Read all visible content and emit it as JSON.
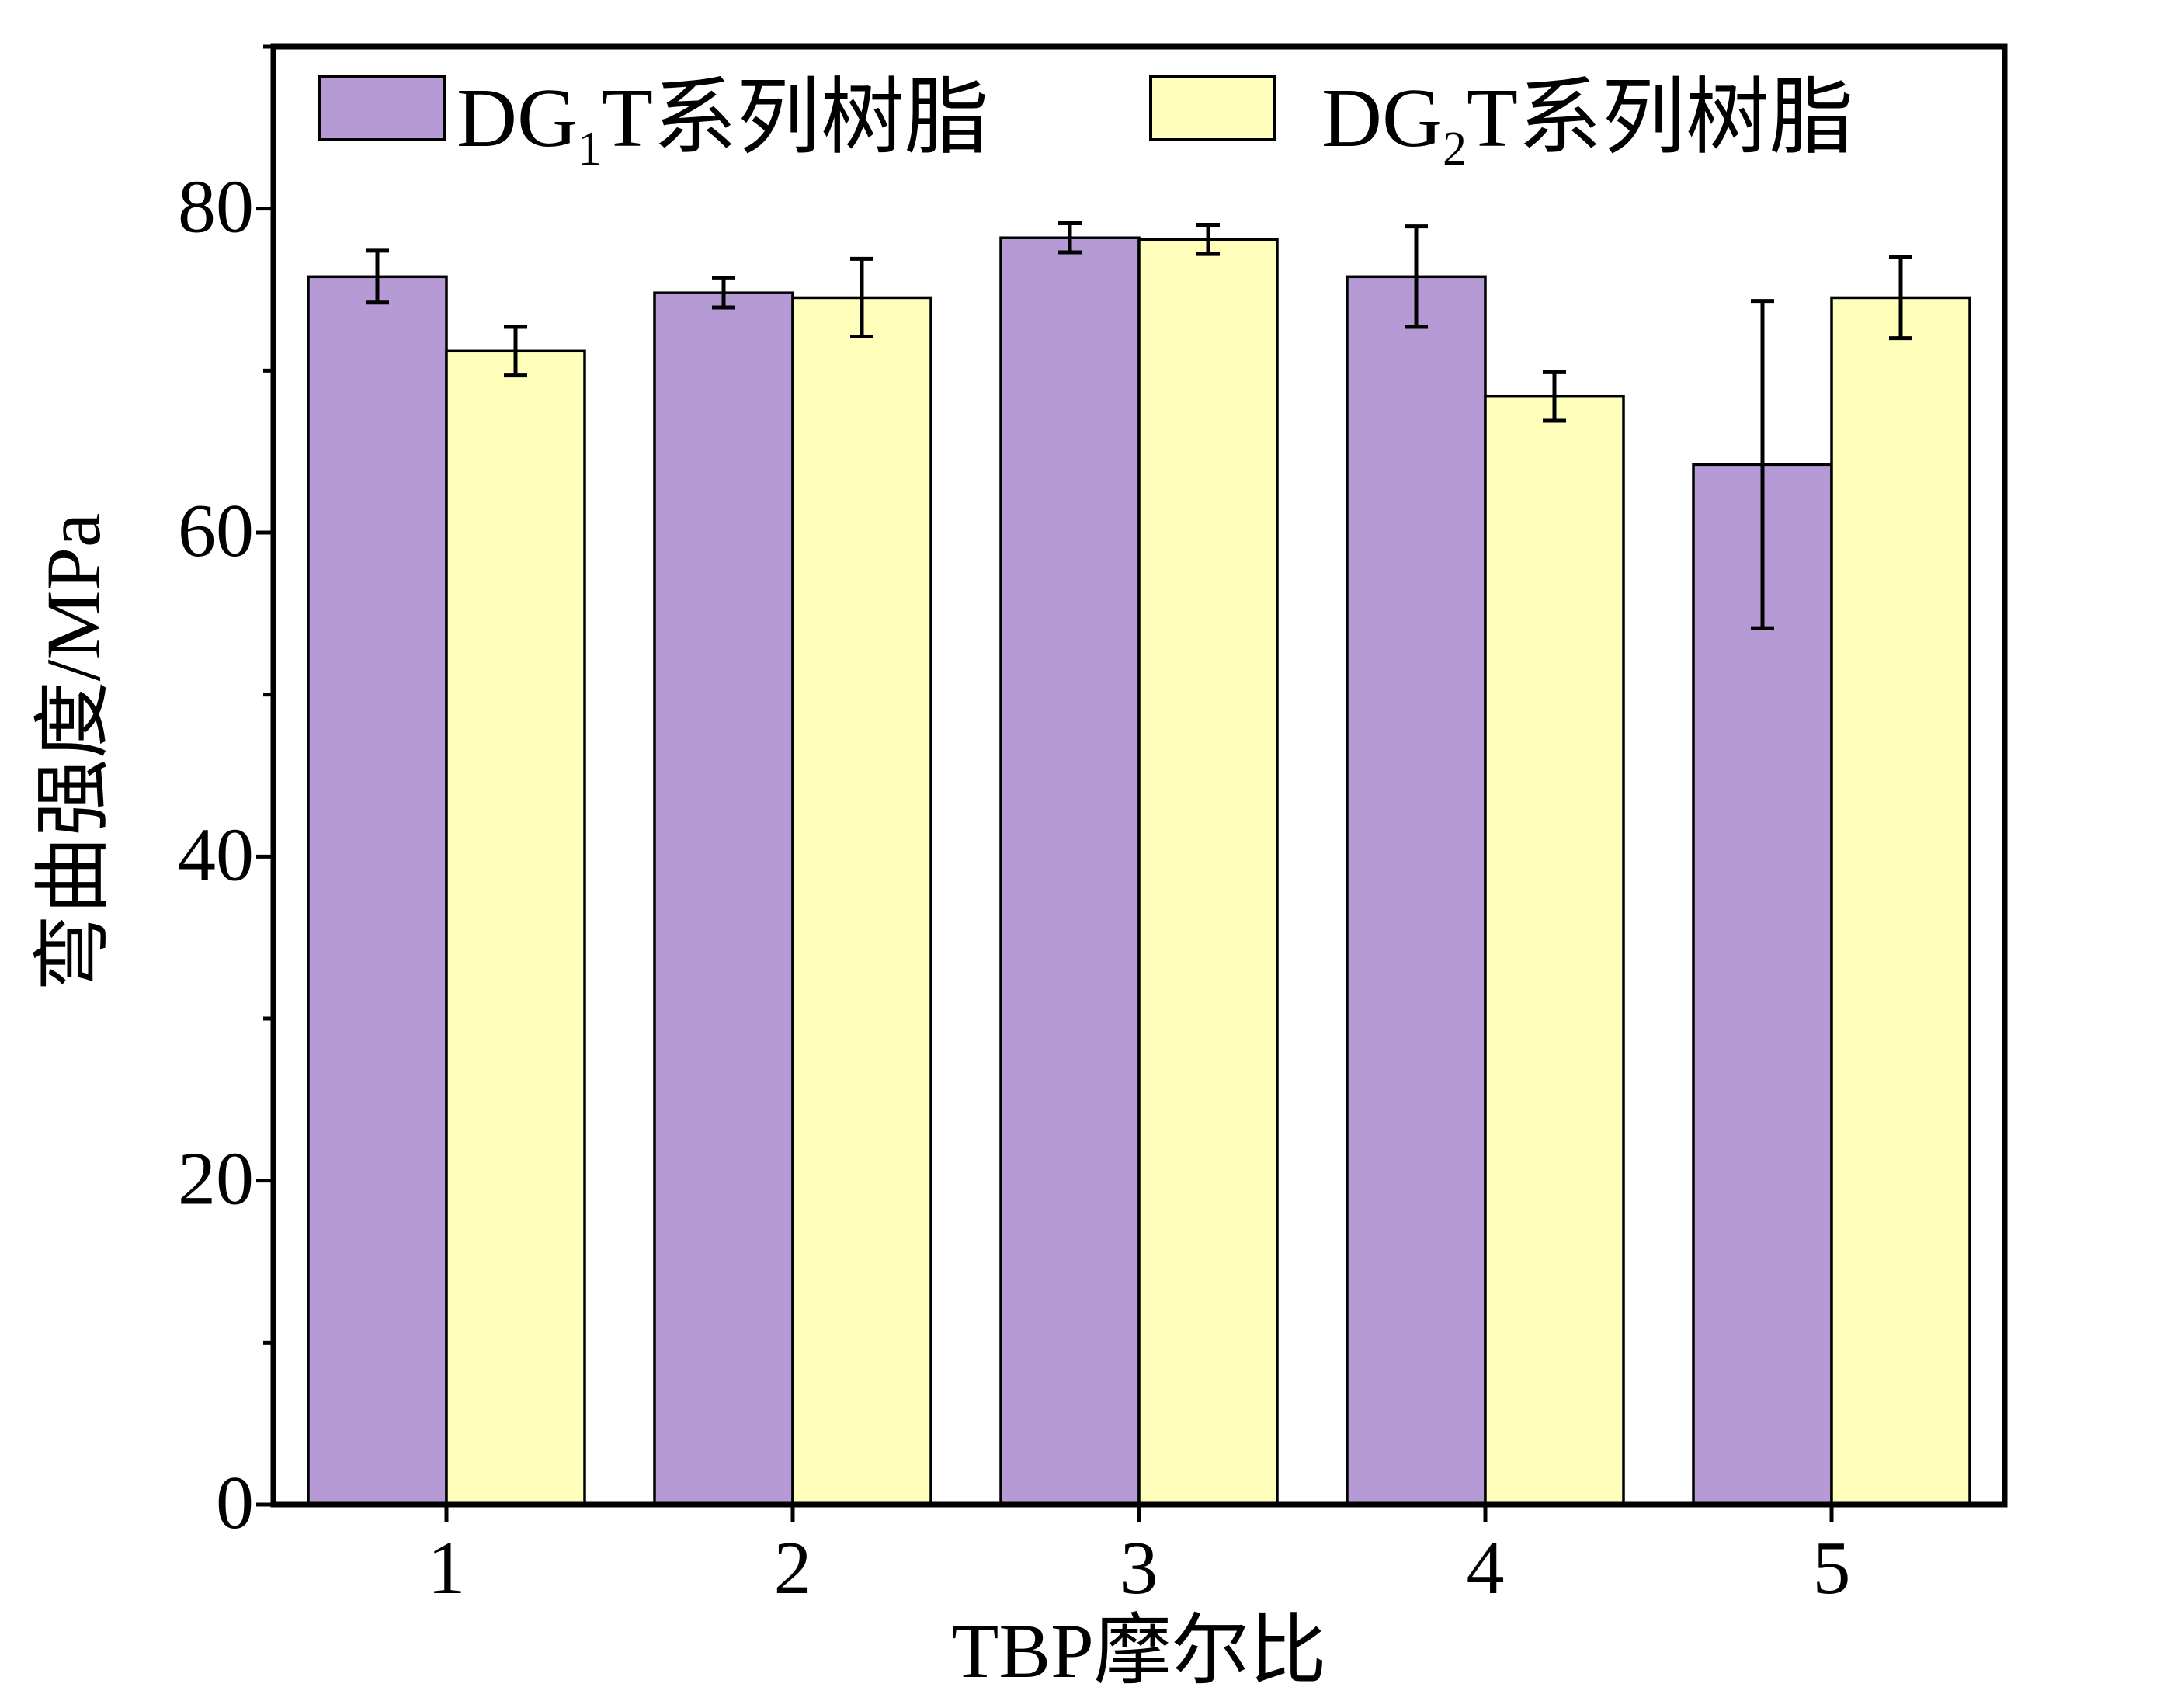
{
  "chart_data": {
    "type": "bar",
    "xlabel": "TBP摩尔比",
    "ylabel": "弯曲强度/MPa",
    "ylim": [
      0,
      90
    ],
    "yticks": [
      0,
      20,
      40,
      60,
      80
    ],
    "categories": [
      "1",
      "2",
      "3",
      "4",
      "5"
    ],
    "legend_position": "top",
    "grid": false,
    "series": [
      {
        "name": "DG1T系列树脂",
        "name_parts": {
          "prefix": "DG",
          "sub": "1",
          "suffix": "T系列树脂"
        },
        "color": "#b69ad6",
        "values": [
          75.8,
          74.8,
          78.2,
          75.8,
          64.2
        ],
        "errors": [
          1.6,
          0.9,
          0.9,
          3.1,
          10.1
        ]
      },
      {
        "name": "DG2T系列树脂",
        "name_parts": {
          "prefix": "DG",
          "sub": "2",
          "suffix": "T系列树脂"
        },
        "color": "#ffffbb",
        "values": [
          71.2,
          74.5,
          78.1,
          68.4,
          74.5
        ],
        "errors": [
          1.5,
          2.4,
          0.9,
          1.5,
          2.5
        ]
      }
    ]
  }
}
